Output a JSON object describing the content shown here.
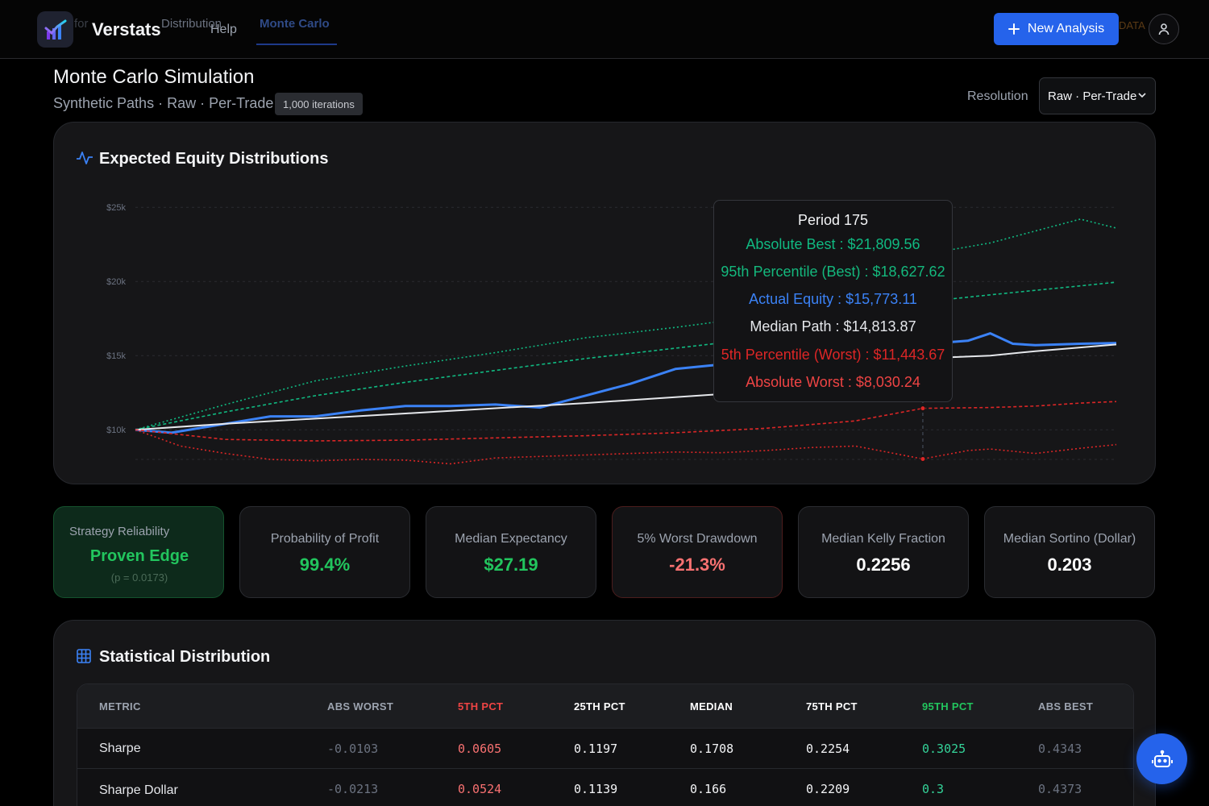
{
  "app": {
    "brand": "Verstats",
    "ghost_tab_1": "for",
    "ghost_tab_2": "Distribution",
    "help_label": "Help",
    "active_tab": "Monte Carlo",
    "ghost_data": "DATA",
    "new_analysis_label": "New Analysis",
    "icons": {
      "logo": "chart-logo-icon",
      "plus": "plus-icon",
      "user": "user-icon",
      "bot": "robot-icon"
    }
  },
  "header": {
    "title": "Monte Carlo Simulation",
    "subtitle": "Synthetic Paths · Raw · Per-Trade",
    "iterations_badge": "1,000 iterations",
    "resolution_label": "Resolution",
    "resolution_value": "Raw · Per-Trade"
  },
  "chart_card": {
    "title": "Expected Equity Distributions",
    "icon": "activity-icon"
  },
  "chart_data": {
    "type": "line",
    "title": "Expected Equity Distributions",
    "yticks": [
      "$25k",
      "$20k",
      "$15k",
      "$10k"
    ],
    "ytick_values": [
      25000,
      20000,
      15000,
      10000
    ],
    "ylim": [
      8000,
      25500
    ],
    "x_range": [
      0,
      218
    ],
    "grid": true,
    "hover_period": 175,
    "series": [
      {
        "name": "Absolute Best",
        "color": "#10b981",
        "style": "dotted",
        "x": [
          0,
          20,
          40,
          60,
          80,
          100,
          120,
          140,
          160,
          175,
          190,
          200,
          210,
          218
        ],
        "values": [
          10000,
          11700,
          13300,
          14300,
          15200,
          16200,
          16900,
          17700,
          19300,
          21809.56,
          22600,
          23400,
          24200,
          23600
        ]
      },
      {
        "name": "95th Percentile (Best)",
        "color": "#10b981",
        "style": "dashed",
        "x": [
          0,
          20,
          40,
          60,
          80,
          100,
          120,
          140,
          160,
          175,
          190,
          200,
          210,
          218
        ],
        "values": [
          10000,
          11200,
          12300,
          13200,
          14000,
          14800,
          15500,
          16200,
          17500,
          18627.62,
          19100,
          19400,
          19700,
          19950
        ]
      },
      {
        "name": "Actual Equity",
        "color": "#3b82f6",
        "style": "solid",
        "x": [
          0,
          8,
          20,
          30,
          40,
          50,
          60,
          70,
          80,
          90,
          100,
          110,
          120,
          130,
          140,
          150,
          160,
          175,
          185,
          190,
          195,
          200,
          210,
          218
        ],
        "values": [
          10000,
          9800,
          10400,
          10900,
          10900,
          11300,
          11600,
          11600,
          11700,
          11500,
          12300,
          13100,
          14100,
          14400,
          15200,
          13800,
          14300,
          15773.11,
          16000,
          16500,
          15800,
          15700,
          15800,
          15850
        ]
      },
      {
        "name": "Median Path",
        "color": "#e5e7eb",
        "style": "solid",
        "x": [
          0,
          20,
          40,
          60,
          80,
          100,
          120,
          140,
          160,
          175,
          190,
          200,
          210,
          218
        ],
        "values": [
          10000,
          10400,
          10750,
          11100,
          11450,
          11800,
          12200,
          12600,
          13000,
          14813.87,
          15000,
          15300,
          15550,
          15750
        ]
      },
      {
        "name": "5th Percentile (Worst)",
        "color": "#dc2626",
        "style": "dashed",
        "x": [
          0,
          20,
          40,
          60,
          80,
          100,
          120,
          140,
          160,
          175,
          190,
          200,
          210,
          218
        ],
        "values": [
          10000,
          9350,
          9250,
          9300,
          9450,
          9600,
          9800,
          10100,
          10600,
          11443.67,
          11500,
          11600,
          11800,
          11900
        ]
      },
      {
        "name": "Absolute Worst",
        "color": "#dc2626",
        "style": "dotted",
        "x": [
          0,
          10,
          20,
          30,
          40,
          50,
          60,
          70,
          80,
          90,
          100,
          110,
          120,
          130,
          140,
          150,
          160,
          175,
          185,
          190,
          200,
          210,
          218
        ],
        "values": [
          10000,
          8900,
          8400,
          8000,
          7900,
          8000,
          7950,
          7700,
          8100,
          8200,
          8300,
          8400,
          8500,
          8450,
          8600,
          8800,
          8900,
          8030.24,
          8600,
          8700,
          8400,
          8750,
          9000
        ]
      }
    ]
  },
  "tooltip": {
    "period": "Period 175",
    "lines": [
      {
        "text": "Absolute Best : $21,809.56",
        "color": "#10b981"
      },
      {
        "text": "95th Percentile (Best) : $18,627.62",
        "color": "#14b87d"
      },
      {
        "text": "Actual Equity : $15,773.11",
        "color": "#3b82f6"
      },
      {
        "text": "Median Path : $14,813.87",
        "color": "#e5e7eb"
      },
      {
        "text": "5th Percentile (Worst) : $11,443.67",
        "color": "#dc2626"
      },
      {
        "text": "Absolute Worst : $8,030.24",
        "color": "#ef4444"
      }
    ]
  },
  "stats": [
    {
      "label": "Strategy Reliability",
      "value": "Proven Edge",
      "pvalue": "(p = 0.0173)",
      "color": "#22c55e"
    },
    {
      "label": "Probability of Profit",
      "value": "99.4%",
      "color": "#22c55e"
    },
    {
      "label": "Median Expectancy",
      "value": "$27.19",
      "color": "#22c55e"
    },
    {
      "label": "5% Worst Drawdown",
      "value": "-21.3%",
      "color": "#f87171"
    },
    {
      "label": "Median Kelly Fraction",
      "value": "0.2256",
      "color": "#ffffff"
    },
    {
      "label": "Median Sortino (Dollar)",
      "value": "0.203",
      "color": "#ffffff"
    }
  ],
  "table": {
    "title": "Statistical Distribution",
    "icon": "table-icon",
    "headers": [
      "METRIC",
      "ABS WORST",
      "5TH PCT",
      "25TH PCT",
      "MEDIAN",
      "75TH PCT",
      "95TH PCT",
      "ABS BEST"
    ],
    "header_colors": [
      "#9ca3af",
      "#9ca3af",
      "#ef4444",
      "#ffffff",
      "#ffffff",
      "#ffffff",
      "#22c55e",
      "#9ca3af"
    ],
    "rows": [
      [
        "Sharpe",
        "-0.0103",
        "0.0605",
        "0.1197",
        "0.1708",
        "0.2254",
        "0.3025",
        "0.4343"
      ],
      [
        "Sharpe Dollar",
        "-0.0213",
        "0.0524",
        "0.1139",
        "0.166",
        "0.2209",
        "0.3",
        "0.4373"
      ]
    ]
  }
}
